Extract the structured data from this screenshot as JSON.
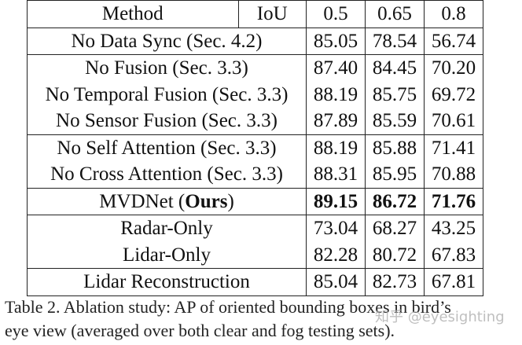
{
  "table": {
    "header": {
      "method": "Method",
      "iou": "IoU",
      "cols": [
        "0.5",
        "0.65",
        "0.8"
      ]
    },
    "rows": [
      {
        "method": "No Data Sync (Sec. 4.2)",
        "values": [
          "85.05",
          "78.54",
          "56.74"
        ],
        "group_start": true
      },
      {
        "method": "No Fusion (Sec. 3.3)",
        "values": [
          "87.40",
          "84.45",
          "70.20"
        ],
        "group_start": true
      },
      {
        "method": "No Temporal Fusion (Sec. 3.3)",
        "values": [
          "88.19",
          "85.75",
          "69.72"
        ]
      },
      {
        "method": "No Sensor Fusion (Sec. 3.3)",
        "values": [
          "87.89",
          "85.59",
          "70.61"
        ]
      },
      {
        "method": "No Self Attention (Sec. 3.3)",
        "values": [
          "88.19",
          "85.88",
          "71.41"
        ],
        "group_start": true
      },
      {
        "method": "No Cross Attention (Sec. 3.3)",
        "values": [
          "88.31",
          "85.95",
          "70.88"
        ]
      },
      {
        "method_prefix": "MVDNet (",
        "method_bold": "Ours",
        "method_suffix": ")",
        "values": [
          "89.15",
          "86.72",
          "71.76"
        ],
        "bold": true,
        "group_start": true
      },
      {
        "method": "Radar-Only",
        "values": [
          "73.04",
          "68.27",
          "43.25"
        ],
        "group_start": true
      },
      {
        "method": "Lidar-Only",
        "values": [
          "82.28",
          "80.72",
          "67.83"
        ]
      },
      {
        "method": "Lidar Reconstruction",
        "values": [
          "85.04",
          "82.73",
          "67.81"
        ],
        "group_start": true
      }
    ]
  },
  "caption": {
    "line1": "Table 2. Ablation study: AP of oriented bounding boxes in bird’s",
    "line2": "eye view (averaged over both clear and fog testing sets)."
  },
  "watermark": "知乎 @eyesighting"
}
